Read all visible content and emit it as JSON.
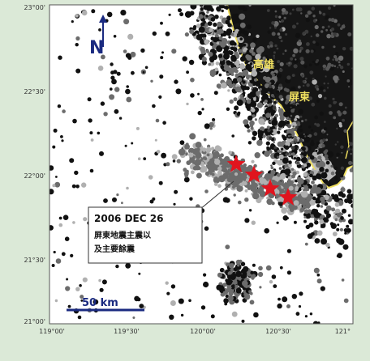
{
  "map": {
    "lat_ticks": [
      "23°00'",
      "22°30'",
      "22°00'",
      "21°30'",
      "21°00'"
    ],
    "lon_ticks": [
      "119°00'",
      "119°30'",
      "120°00'",
      "120°30'",
      "121°"
    ],
    "places": [
      {
        "id": "kaohsiung",
        "label": "高雄"
      },
      {
        "id": "pingtung",
        "label": "屏東"
      }
    ],
    "north_arrow": {
      "label": "N",
      "icon": "north-arrow-icon"
    },
    "scale_bar": {
      "label": "50 km"
    },
    "callout": {
      "title": "2006 DEC 26",
      "subtitle": "屏東地震主震以及主要餘震"
    },
    "colors": {
      "background": "#dbe9d7",
      "land": "#161616",
      "coastline": "#f0e060",
      "events_shallow": "#111111",
      "events_mid": "#6c6c6c",
      "events_deep": "#b0b0b0",
      "mainshock": "#e0141e",
      "accent": "#1a2a80"
    },
    "mainshocks_count": 4
  }
}
